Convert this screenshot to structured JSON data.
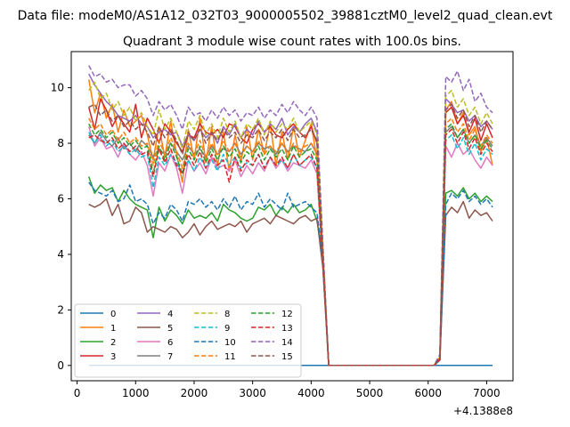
{
  "chart_data": {
    "type": "line",
    "suptitle": "Data file: modeM0/AS1A12_032T03_9000005502_39881cztM0_level2_quad_clean.evt",
    "title": "Quadrant 3 module wise count rates with 100.0s bins.",
    "xlabel": "",
    "ylabel": "",
    "x_offset_label": "+4.1388e8",
    "xlim": [
      -100,
      7450
    ],
    "ylim": [
      -0.55,
      11.3
    ],
    "xticks": [
      0,
      1000,
      2000,
      3000,
      4000,
      5000,
      6000,
      7000
    ],
    "yticks": [
      0,
      2,
      4,
      6,
      8,
      10
    ],
    "x": [
      200,
      300,
      400,
      500,
      600,
      700,
      800,
      900,
      1000,
      1100,
      1200,
      1300,
      1400,
      1500,
      1600,
      1700,
      1800,
      1900,
      2000,
      2100,
      2200,
      2300,
      2400,
      2500,
      2600,
      2700,
      2800,
      2900,
      3000,
      3100,
      3200,
      3300,
      3400,
      3500,
      3600,
      3700,
      3800,
      3900,
      4000,
      4100,
      4200,
      4300,
      4400,
      4500,
      4600,
      4700,
      4800,
      4900,
      5000,
      5100,
      5200,
      5300,
      5400,
      5500,
      5600,
      5700,
      5800,
      5900,
      6000,
      6100,
      6200,
      6300,
      6400,
      6500,
      6600,
      6700,
      6800,
      6900,
      7000,
      7100
    ],
    "series": [
      {
        "name": "0",
        "color": "#1f77b4",
        "dash": "solid",
        "values": [
          0,
          0,
          0,
          0,
          0,
          0,
          0,
          0,
          0,
          0,
          0,
          0,
          0,
          0,
          0,
          0,
          0,
          0,
          0,
          0,
          0,
          0,
          0,
          0,
          0,
          0,
          0,
          0,
          0,
          0,
          0,
          0,
          0,
          0,
          0,
          0,
          0,
          0,
          0,
          0,
          0,
          0,
          0,
          0,
          0,
          0,
          0,
          0,
          0,
          0,
          0,
          0,
          0,
          0,
          0,
          0,
          0,
          0,
          0,
          0,
          0,
          0,
          0,
          0,
          0,
          0,
          0,
          0,
          0,
          0
        ]
      },
      {
        "name": "1",
        "color": "#ff7f0e",
        "dash": "solid",
        "values": [
          10.3,
          9.1,
          9.8,
          8.9,
          9.4,
          8.4,
          9.2,
          8.6,
          8.8,
          9.0,
          8.3,
          7.4,
          8.6,
          7.5,
          8.8,
          7.6,
          6.6,
          8.5,
          7.4,
          8.9,
          7.3,
          8.6,
          7.2,
          8.4,
          7.0,
          8.3,
          7.3,
          8.6,
          7.4,
          8.5,
          7.6,
          8.7,
          7.2,
          8.4,
          7.4,
          8.6,
          7.5,
          8.1,
          8.7,
          7.4,
          3.8,
          0,
          0,
          0,
          0,
          0,
          0,
          0,
          0,
          0,
          0,
          0,
          0,
          0,
          0,
          0,
          0,
          0,
          0,
          0,
          0.2,
          9.2,
          9.5,
          8.7,
          9.1,
          8.3,
          8.6,
          7.7,
          8.2,
          7.2
        ]
      },
      {
        "name": "2",
        "color": "#2ca02c",
        "dash": "solid",
        "values": [
          6.8,
          6.2,
          6.5,
          6.3,
          6.4,
          5.9,
          6.3,
          6.0,
          5.8,
          5.7,
          5.6,
          4.6,
          5.7,
          5.2,
          5.6,
          5.4,
          5.1,
          5.6,
          5.3,
          5.4,
          5.3,
          5.5,
          5.2,
          5.8,
          5.6,
          5.5,
          5.3,
          5.2,
          5.3,
          5.7,
          5.6,
          5.8,
          5.4,
          5.7,
          5.5,
          5.8,
          5.5,
          5.6,
          5.8,
          5.2,
          3.9,
          0,
          0,
          0,
          0,
          0,
          0,
          0,
          0,
          0,
          0,
          0,
          0,
          0,
          0,
          0,
          0,
          0,
          0,
          0,
          0.2,
          6.2,
          6.3,
          6.1,
          6.4,
          6.0,
          6.2,
          5.9,
          6.1,
          5.9
        ]
      },
      {
        "name": "3",
        "color": "#d62728",
        "dash": "solid",
        "values": [
          9.3,
          8.5,
          9.6,
          9.2,
          8.6,
          9.0,
          8.7,
          8.4,
          9.4,
          8.2,
          8.9,
          8.5,
          8.0,
          8.7,
          8.4,
          8.0,
          7.7,
          8.3,
          8.2,
          8.7,
          8.4,
          8.3,
          8.5,
          8.2,
          8.7,
          8.6,
          8.2,
          8.0,
          8.5,
          8.7,
          8.4,
          8.6,
          8.3,
          8.2,
          8.5,
          8.7,
          8.4,
          8.2,
          8.6,
          8.0,
          4.1,
          0,
          0,
          0,
          0,
          0,
          0,
          0,
          0,
          0,
          0,
          0,
          0,
          0,
          0,
          0,
          0,
          0,
          0,
          0,
          0.3,
          9.1,
          9.3,
          8.7,
          9.0,
          8.4,
          8.9,
          8.1,
          8.7,
          8.2
        ]
      },
      {
        "name": "4",
        "color": "#9467bd",
        "dash": "solid",
        "values": [
          10.5,
          10.1,
          9.8,
          9.5,
          9.3,
          9.0,
          8.9,
          8.8,
          9.0,
          8.7,
          8.6,
          8.2,
          8.4,
          8.5,
          8.3,
          8.4,
          7.9,
          8.3,
          8.1,
          8.5,
          8.2,
          8.4,
          8.0,
          8.6,
          8.3,
          8.7,
          8.2,
          8.5,
          8.3,
          8.8,
          8.4,
          8.7,
          8.5,
          8.9,
          8.3,
          8.6,
          8.4,
          8.7,
          8.9,
          8.4,
          4.2,
          0,
          0,
          0,
          0,
          0,
          0,
          0,
          0,
          0,
          0,
          0,
          0,
          0,
          0,
          0,
          0,
          0,
          0,
          0,
          0.3,
          9.6,
          9.4,
          9.1,
          9.2,
          8.8,
          9.0,
          8.6,
          8.8,
          8.5
        ]
      },
      {
        "name": "5",
        "color": "#8c564b",
        "dash": "solid",
        "values": [
          5.8,
          5.7,
          5.8,
          6.0,
          5.4,
          5.8,
          5.1,
          5.2,
          5.7,
          5.5,
          4.8,
          5.0,
          4.9,
          4.8,
          5.0,
          4.9,
          4.6,
          4.8,
          5.1,
          4.7,
          5.0,
          5.2,
          4.9,
          5.0,
          5.1,
          5.0,
          5.2,
          4.8,
          5.1,
          5.2,
          5.3,
          5.1,
          5.4,
          5.3,
          5.2,
          5.1,
          5.3,
          5.4,
          5.2,
          5.3,
          3.5,
          0,
          0,
          0,
          0,
          0,
          0,
          0,
          0,
          0,
          0,
          0,
          0,
          0,
          0,
          0,
          0,
          0,
          0,
          0,
          0.2,
          5.4,
          5.7,
          5.5,
          5.9,
          5.3,
          5.6,
          5.4,
          5.5,
          5.2
        ]
      },
      {
        "name": "6",
        "color": "#e377c2",
        "dash": "solid",
        "values": [
          8.6,
          7.9,
          8.2,
          7.8,
          7.9,
          7.5,
          8.0,
          7.6,
          7.4,
          7.7,
          7.2,
          6.1,
          7.3,
          7.0,
          7.6,
          7.1,
          6.2,
          7.4,
          7.0,
          7.3,
          6.9,
          7.5,
          7.1,
          7.2,
          7.0,
          7.4,
          6.8,
          7.2,
          6.9,
          7.3,
          7.0,
          7.5,
          7.1,
          7.4,
          7.0,
          7.3,
          7.2,
          7.1,
          7.4,
          6.9,
          3.6,
          0,
          0,
          0,
          0,
          0,
          0,
          0,
          0,
          0,
          0,
          0,
          0,
          0,
          0,
          0,
          0,
          0,
          0,
          0,
          0.2,
          7.9,
          7.5,
          8.0,
          7.6,
          7.8,
          7.4,
          7.1,
          7.5,
          7.2
        ]
      },
      {
        "name": "7",
        "color": "#7f7f7f",
        "dash": "solid",
        "values": [
          8.3,
          8.0,
          8.4,
          8.1,
          7.9,
          8.2,
          7.8,
          8.0,
          7.7,
          8.1,
          7.9,
          7.5,
          7.8,
          7.6,
          8.0,
          7.7,
          7.4,
          7.9,
          7.6,
          7.8,
          7.5,
          7.9,
          7.6,
          7.8,
          7.7,
          8.0,
          7.6,
          7.9,
          7.7,
          8.0,
          7.8,
          7.9,
          7.6,
          8.0,
          7.7,
          7.9,
          7.8,
          7.7,
          8.0,
          7.6,
          3.9,
          0,
          0,
          0,
          0,
          0,
          0,
          0,
          0,
          0,
          0,
          0,
          0,
          0,
          0,
          0,
          0,
          0,
          0,
          0,
          0.3,
          8.4,
          8.6,
          8.2,
          8.5,
          8.0,
          8.3,
          7.9,
          8.2,
          7.9
        ]
      },
      {
        "name": "8",
        "color": "#bcbd22",
        "dash": "dashed",
        "values": [
          9.9,
          10.2,
          9.6,
          9.8,
          9.2,
          9.5,
          9.0,
          9.3,
          8.8,
          9.1,
          8.6,
          8.3,
          9.2,
          8.5,
          8.9,
          8.4,
          7.8,
          8.8,
          8.5,
          9.0,
          8.3,
          8.7,
          8.2,
          8.9,
          8.4,
          8.8,
          8.2,
          8.7,
          8.5,
          8.9,
          8.3,
          8.8,
          8.4,
          8.7,
          8.5,
          8.9,
          8.4,
          8.6,
          8.8,
          8.3,
          4.2,
          0,
          0,
          0,
          0,
          0,
          0,
          0,
          0,
          0,
          0,
          0,
          0,
          0,
          0,
          0,
          0,
          0,
          0,
          0,
          0.3,
          9.7,
          9.9,
          9.3,
          9.6,
          9.0,
          9.3,
          8.7,
          9.1,
          8.7
        ]
      },
      {
        "name": "9",
        "color": "#17becf",
        "dash": "dashed",
        "values": [
          8.4,
          8.0,
          8.3,
          7.9,
          8.1,
          7.7,
          7.9,
          7.6,
          7.8,
          7.5,
          7.6,
          6.4,
          7.5,
          7.2,
          7.6,
          7.3,
          6.9,
          7.4,
          7.0,
          7.5,
          7.1,
          7.4,
          7.0,
          7.6,
          7.2,
          7.5,
          7.1,
          7.3,
          7.2,
          7.6,
          7.1,
          7.5,
          7.2,
          7.4,
          7.1,
          7.6,
          7.2,
          7.4,
          7.5,
          7.1,
          3.7,
          0,
          0,
          0,
          0,
          0,
          0,
          0,
          0,
          0,
          0,
          0,
          0,
          0,
          0,
          0,
          0,
          0,
          0,
          0,
          0.2,
          8.1,
          8.3,
          7.8,
          8.2,
          7.6,
          8.0,
          7.4,
          7.8,
          7.6
        ]
      },
      {
        "name": "10",
        "color": "#1f77b4",
        "dash": "dashed",
        "values": [
          6.6,
          6.3,
          6.2,
          6.1,
          6.3,
          5.9,
          6.0,
          6.5,
          5.9,
          6.0,
          5.8,
          5.1,
          5.5,
          5.3,
          5.8,
          5.6,
          5.2,
          5.9,
          5.8,
          6.0,
          5.7,
          5.9,
          5.6,
          6.0,
          5.7,
          6.1,
          5.6,
          5.9,
          5.8,
          6.2,
          5.7,
          6.0,
          5.8,
          5.6,
          6.2,
          5.7,
          5.8,
          5.9,
          5.7,
          5.5,
          3.8,
          0,
          0,
          0,
          0,
          0,
          0,
          0,
          0,
          0,
          0,
          0,
          0,
          0,
          0,
          0,
          0,
          0,
          0,
          0,
          0.2,
          5.8,
          6.2,
          6.0,
          6.3,
          5.9,
          6.1,
          5.8,
          6.0,
          5.7
        ]
      },
      {
        "name": "11",
        "color": "#ff7f0e",
        "dash": "dashed",
        "values": [
          8.9,
          8.5,
          8.7,
          8.3,
          8.5,
          8.1,
          8.4,
          8.0,
          8.2,
          7.9,
          8.0,
          7.2,
          8.1,
          7.6,
          8.2,
          7.7,
          7.1,
          8.0,
          7.6,
          8.1,
          7.5,
          8.0,
          7.6,
          8.1,
          7.7,
          8.0,
          7.5,
          7.9,
          7.7,
          8.1,
          7.6,
          7.9,
          7.7,
          8.0,
          7.6,
          8.0,
          7.7,
          7.9,
          8.0,
          7.6,
          3.9,
          0,
          0,
          0,
          0,
          0,
          0,
          0,
          0,
          0,
          0,
          0,
          0,
          0,
          0,
          0,
          0,
          0,
          0,
          0,
          0.3,
          8.7,
          8.9,
          8.4,
          8.7,
          8.1,
          8.5,
          7.9,
          8.3,
          8.0
        ]
      },
      {
        "name": "12",
        "color": "#2ca02c",
        "dash": "dashed",
        "values": [
          8.7,
          8.3,
          8.5,
          8.2,
          8.4,
          8.0,
          8.2,
          7.9,
          8.1,
          7.8,
          7.9,
          6.9,
          7.9,
          7.4,
          8.0,
          7.5,
          6.9,
          7.8,
          7.4,
          7.9,
          7.3,
          7.8,
          7.4,
          7.9,
          7.5,
          7.8,
          7.3,
          7.7,
          7.5,
          7.9,
          7.4,
          7.8,
          7.5,
          7.8,
          7.4,
          7.9,
          7.5,
          7.7,
          7.8,
          7.4,
          3.8,
          0,
          0,
          0,
          0,
          0,
          0,
          0,
          0,
          0,
          0,
          0,
          0,
          0,
          0,
          0,
          0,
          0,
          0,
          0,
          0.3,
          8.5,
          8.7,
          8.2,
          8.5,
          8.0,
          8.3,
          7.8,
          8.1,
          7.8
        ]
      },
      {
        "name": "13",
        "color": "#d62728",
        "dash": "dashed",
        "values": [
          8.2,
          8.3,
          8.1,
          8.0,
          8.2,
          7.8,
          8.0,
          7.7,
          7.9,
          7.6,
          7.7,
          6.8,
          7.8,
          7.3,
          7.8,
          7.2,
          6.9,
          7.6,
          7.2,
          7.7,
          7.1,
          7.6,
          7.2,
          7.4,
          6.6,
          7.5,
          7.0,
          7.4,
          7.2,
          7.6,
          7.1,
          7.5,
          7.2,
          7.5,
          7.1,
          7.6,
          7.2,
          7.4,
          7.6,
          7.1,
          3.7,
          0,
          0,
          0,
          0,
          0,
          0,
          0,
          0,
          0,
          0,
          0,
          0,
          0,
          0,
          0,
          0,
          0,
          0,
          0,
          0.2,
          8.3,
          8.5,
          8.0,
          8.4,
          7.8,
          8.2,
          7.6,
          8.0,
          7.7
        ]
      },
      {
        "name": "14",
        "color": "#9467bd",
        "dash": "dashed",
        "values": [
          10.8,
          10.4,
          10.5,
          10.2,
          10.3,
          10.0,
          10.1,
          10.1,
          9.7,
          9.9,
          9.6,
          9.0,
          9.5,
          9.2,
          9.4,
          9.0,
          8.5,
          9.3,
          9.0,
          9.1,
          8.8,
          9.2,
          8.9,
          9.3,
          9.0,
          9.2,
          8.8,
          9.1,
          9.0,
          9.3,
          8.9,
          9.2,
          9.0,
          9.4,
          9.1,
          9.5,
          9.2,
          9.0,
          9.3,
          8.9,
          4.4,
          0,
          0,
          0,
          0,
          0,
          0,
          0,
          0,
          0,
          0,
          0,
          0,
          0,
          0,
          0,
          0,
          0,
          0,
          0,
          0.4,
          10.4,
          10.2,
          10.6,
          9.9,
          10.3,
          9.5,
          9.8,
          9.3,
          9.1
        ]
      },
      {
        "name": "15",
        "color": "#8c564b",
        "dash": "dashed",
        "values": [
          9.3,
          9.4,
          9.0,
          9.2,
          8.8,
          9.0,
          8.6,
          8.8,
          8.5,
          8.7,
          8.4,
          7.9,
          8.6,
          8.2,
          8.5,
          8.1,
          7.6,
          8.4,
          8.1,
          8.5,
          8.0,
          8.4,
          8.1,
          8.5,
          8.2,
          8.4,
          8.0,
          8.3,
          8.2,
          8.5,
          8.1,
          8.4,
          8.2,
          8.5,
          8.1,
          8.5,
          8.2,
          8.3,
          8.5,
          8.1,
          4.0,
          0,
          0,
          0,
          0,
          0,
          0,
          0,
          0,
          0,
          0,
          0,
          0,
          0,
          0,
          0,
          0,
          0,
          0,
          0,
          0.3,
          9.2,
          9.4,
          8.9,
          9.2,
          8.6,
          9.0,
          8.4,
          8.8,
          8.5
        ]
      }
    ],
    "legend_placement": "lower-left",
    "legend_columns": 4,
    "grid": false
  }
}
